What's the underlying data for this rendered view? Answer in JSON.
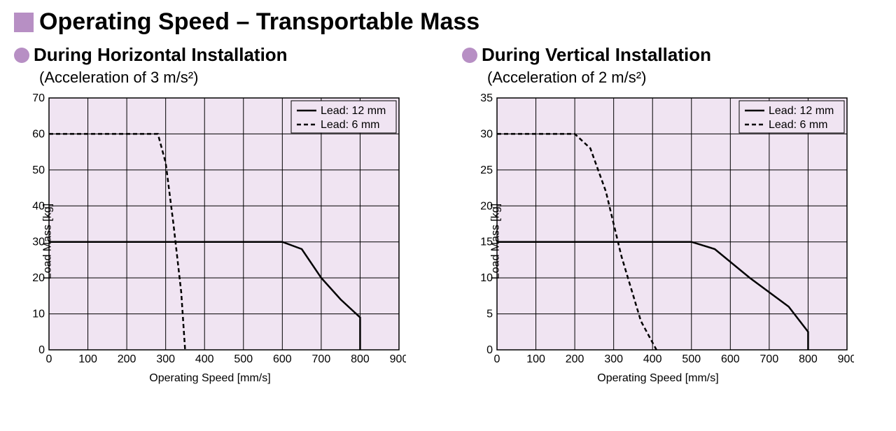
{
  "main_title": "Operating Speed – Transportable Mass",
  "bullet_color": "#b78fc4",
  "plot_bg": "#f0e4f2",
  "grid_color": "#000000",
  "grid_width": 1,
  "axis_font_size": 16,
  "title_font_size": 34,
  "subtitle_font_size": 26,
  "accel_font_size": 22,
  "legend": {
    "solid_label": "Lead: 12 mm",
    "dashed_label": "Lead: 6 mm",
    "solid_dash": "",
    "dashed_dash": "6,4"
  },
  "charts": [
    {
      "subtitle": "During Horizontal Installation",
      "accel": "(Acceleration of 3 m/s²)",
      "xlabel": "Operating Speed [mm/s]",
      "ylabel": "Load Mass [kg]",
      "xlim": [
        0,
        900
      ],
      "ylim": [
        0,
        70
      ],
      "xtick_step": 100,
      "ytick_step": 10,
      "series": [
        {
          "name": "Lead: 12 mm",
          "dash": "",
          "width": 2.5,
          "color": "#000000",
          "points": [
            [
              0,
              30
            ],
            [
              600,
              30
            ],
            [
              650,
              28
            ],
            [
              700,
              20
            ],
            [
              750,
              14
            ],
            [
              800,
              9
            ],
            [
              800,
              0
            ]
          ]
        },
        {
          "name": "Lead: 6 mm",
          "dash": "6,4",
          "width": 2.5,
          "color": "#000000",
          "points": [
            [
              0,
              60
            ],
            [
              280,
              60
            ],
            [
              300,
              52
            ],
            [
              320,
              35
            ],
            [
              340,
              16
            ],
            [
              350,
              0
            ]
          ]
        }
      ]
    },
    {
      "subtitle": "During Vertical Installation",
      "accel": "(Acceleration of 2 m/s²)",
      "xlabel": "Operating Speed [mm/s]",
      "ylabel": "Load Mass [kg]",
      "xlim": [
        0,
        900
      ],
      "ylim": [
        0,
        35
      ],
      "xtick_step": 100,
      "ytick_step": 5,
      "series": [
        {
          "name": "Lead: 12 mm",
          "dash": "",
          "width": 2.5,
          "color": "#000000",
          "points": [
            [
              0,
              15
            ],
            [
              500,
              15
            ],
            [
              560,
              14
            ],
            [
              650,
              10
            ],
            [
              750,
              6
            ],
            [
              800,
              2.5
            ],
            [
              800,
              0
            ]
          ]
        },
        {
          "name": "Lead: 6 mm",
          "dash": "6,4",
          "width": 2.5,
          "color": "#000000",
          "points": [
            [
              0,
              30
            ],
            [
              200,
              30
            ],
            [
              240,
              28
            ],
            [
              280,
              22
            ],
            [
              320,
              13
            ],
            [
              370,
              4
            ],
            [
              400,
              1
            ],
            [
              410,
              0
            ]
          ]
        }
      ]
    }
  ]
}
